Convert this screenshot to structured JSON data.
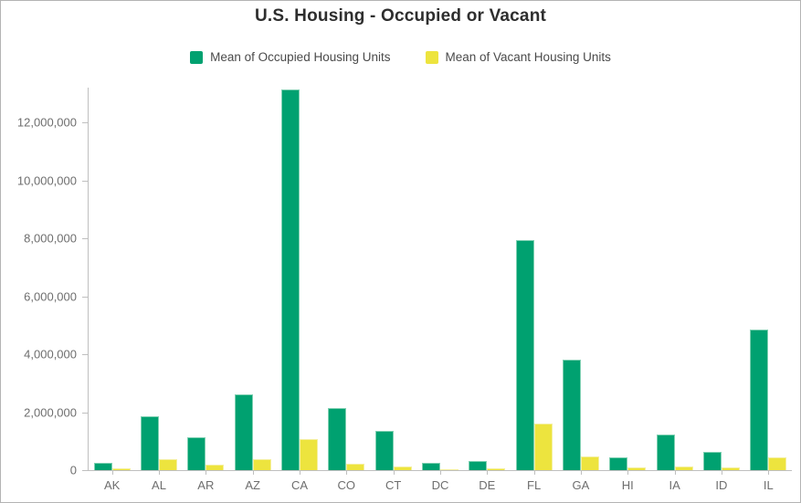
{
  "title": "U.S. Housing - Occupied or Vacant",
  "legend": {
    "items": [
      {
        "label": "Mean of Occupied Housing Units",
        "color": "#00a170"
      },
      {
        "label": "Mean of Vacant Housing Units",
        "color": "#ede43e"
      }
    ]
  },
  "colors": {
    "occupied_fill": "#00a170",
    "occupied_edge": "#7fd0b2",
    "vacant_fill": "#ede43e",
    "vacant_edge": "#f4ef9e",
    "axis_line": "#bfbfbf",
    "tick_label": "#6e6e6e",
    "title_text": "#2e2e2e",
    "legend_text": "#4a4a4a"
  },
  "chart_data": {
    "type": "bar",
    "title": "U.S. Housing - Occupied or Vacant",
    "xlabel": "",
    "ylabel": "",
    "categories": [
      "AK",
      "AL",
      "AR",
      "AZ",
      "CA",
      "CO",
      "CT",
      "DC",
      "DE",
      "FL",
      "GA",
      "HI",
      "IA",
      "ID",
      "IL"
    ],
    "series": [
      {
        "name": "Mean of Occupied Housing Units",
        "color": "#00a170",
        "values": [
          250000,
          1870000,
          1130000,
          2600000,
          13140000,
          2130000,
          1360000,
          260000,
          330000,
          7950000,
          3810000,
          440000,
          1240000,
          620000,
          4860000
        ]
      },
      {
        "name": "Mean of Vacant Housing Units",
        "color": "#ede43e",
        "values": [
          50000,
          370000,
          180000,
          380000,
          1080000,
          210000,
          130000,
          30000,
          60000,
          1600000,
          470000,
          80000,
          130000,
          80000,
          450000
        ]
      }
    ],
    "ylim": [
      0,
      13200000
    ],
    "yticks": [
      0,
      2000000,
      4000000,
      6000000,
      8000000,
      10000000,
      12000000
    ],
    "ytick_labels": [
      "0",
      "2,000,000",
      "4,000,000",
      "6,000,000",
      "8,000,000",
      "10,000,000",
      "12,000,000"
    ],
    "grid": false,
    "legend_position": "top"
  }
}
